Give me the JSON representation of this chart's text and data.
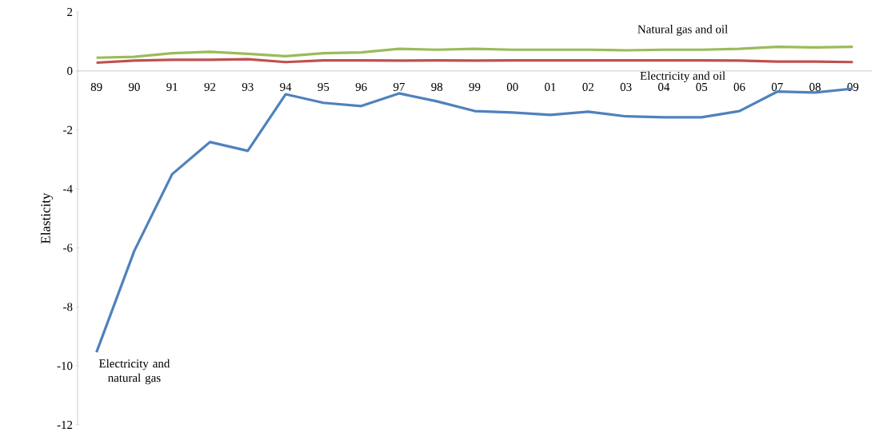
{
  "chart_data": {
    "type": "line",
    "ylabel": "Elasticity",
    "categories": [
      "89",
      "90",
      "91",
      "92",
      "93",
      "94",
      "95",
      "96",
      "97",
      "98",
      "99",
      "00",
      "01",
      "02",
      "03",
      "04",
      "05",
      "06",
      "07",
      "08",
      "09"
    ],
    "ylim": [
      -12,
      2
    ],
    "yticks": [
      -12,
      -10,
      -8,
      -6,
      -4,
      -2,
      0,
      2
    ],
    "grid": false,
    "marker": "none",
    "line_style": "solid",
    "series": [
      {
        "name": "Natural gas and oil",
        "color": "#9bbb59",
        "values": [
          0.45,
          0.48,
          0.6,
          0.65,
          0.58,
          0.5,
          0.6,
          0.63,
          0.75,
          0.72,
          0.75,
          0.72,
          0.72,
          0.72,
          0.7,
          0.72,
          0.72,
          0.75,
          0.82,
          0.8,
          0.82
        ]
      },
      {
        "name": "Electricity and oil",
        "color": "#c0504d",
        "values": [
          0.28,
          0.35,
          0.38,
          0.38,
          0.4,
          0.3,
          0.36,
          0.36,
          0.35,
          0.36,
          0.35,
          0.36,
          0.36,
          0.36,
          0.36,
          0.36,
          0.36,
          0.35,
          0.32,
          0.32,
          0.3
        ]
      },
      {
        "name": "Electricity and natural gas",
        "color": "#4f81bd",
        "values": [
          -9.54,
          -6.1,
          -3.5,
          -2.41,
          -2.71,
          -0.79,
          -1.08,
          -1.19,
          -0.76,
          -1.03,
          -1.36,
          -1.41,
          -1.49,
          -1.38,
          -1.54,
          -1.57,
          -1.57,
          -1.36,
          -0.7,
          -0.73,
          -0.6
        ]
      }
    ]
  }
}
